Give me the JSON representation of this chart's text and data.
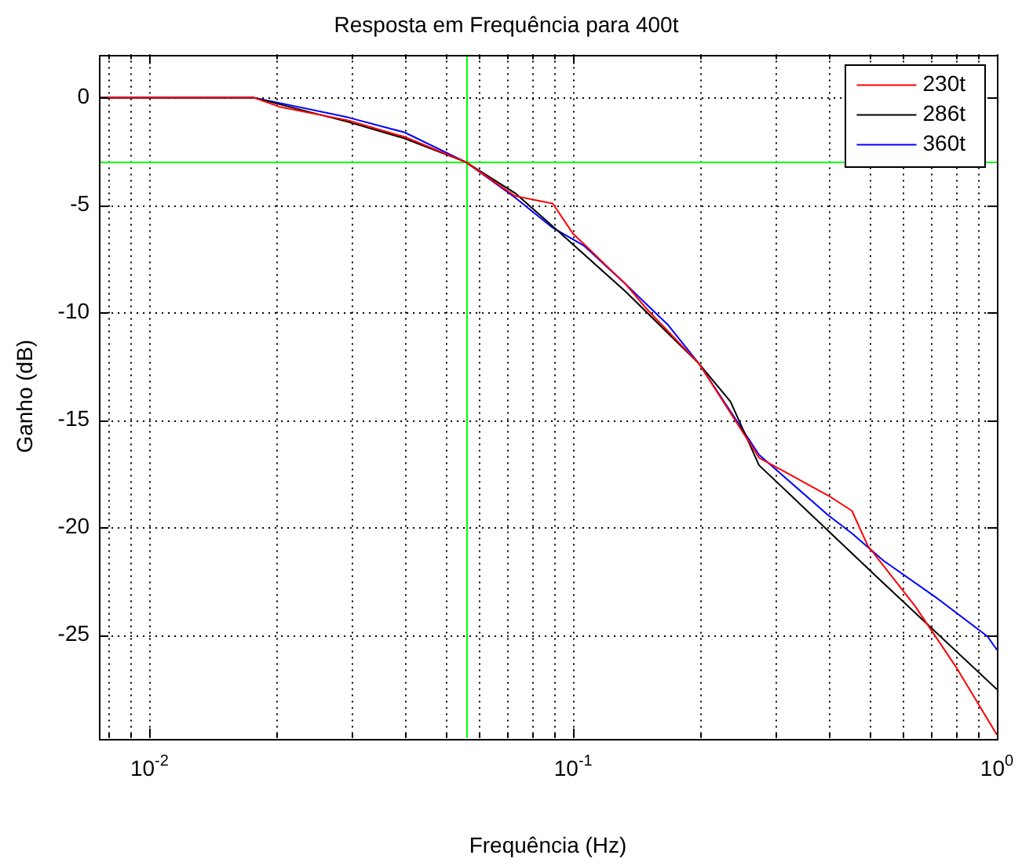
{
  "chart_data": {
    "type": "line",
    "title": "Resposta em Frequência para 400t",
    "xlabel": "Frequência (Hz)",
    "ylabel": "Ganho (dB)",
    "log": "x",
    "grid": true,
    "legend": "top right",
    "marker": "none",
    "line_style": "solid",
    "xlim": [
      0.0076,
      1
    ],
    "ylim": [
      -29.8,
      2
    ],
    "xticks": [
      {
        "value": 0.008,
        "label": null
      },
      {
        "value": 0.009,
        "label": null
      },
      {
        "value": 0.01,
        "label": "10$^{-2}$"
      },
      {
        "value": 0.02,
        "label": null
      },
      {
        "value": 0.03,
        "label": null
      },
      {
        "value": 0.04,
        "label": null
      },
      {
        "value": 0.05,
        "label": null
      },
      {
        "value": 0.06,
        "label": null
      },
      {
        "value": 0.07,
        "label": null
      },
      {
        "value": 0.08,
        "label": null
      },
      {
        "value": 0.09,
        "label": null
      },
      {
        "value": 0.1,
        "label": "10$^{-1}$"
      },
      {
        "value": 0.2,
        "label": null
      },
      {
        "value": 0.3,
        "label": null
      },
      {
        "value": 0.4,
        "label": null
      },
      {
        "value": 0.5,
        "label": null
      },
      {
        "value": 0.6,
        "label": null
      },
      {
        "value": 0.7,
        "label": null
      },
      {
        "value": 0.8,
        "label": null
      },
      {
        "value": 0.9,
        "label": null
      },
      {
        "value": 1,
        "label": "10$^{0}$"
      }
    ],
    "yticks": [
      -25,
      -20,
      -15,
      -10,
      -5,
      0
    ],
    "ref_lines": [
      {
        "axis": "x",
        "value": 0.0558,
        "color": "#00ff00",
        "line_style": "solid"
      },
      {
        "axis": "y",
        "value": -3,
        "color": "#00ff00",
        "line_style": "solid"
      }
    ],
    "series": [
      {
        "name": "230t",
        "color": "#ff0000",
        "x": [
          0.0076,
          0.0176,
          0.0202,
          0.0294,
          0.04,
          0.0558,
          0.0729,
          0.0895,
          0.1,
          0.1327,
          0.1495,
          0.1983,
          0.2746,
          0.4002,
          0.455,
          0.4957,
          0.641,
          0.8,
          1
        ],
        "values": [
          0,
          0,
          -0.42,
          -1.06,
          -1.83,
          -3,
          -4.58,
          -4.93,
          -6.34,
          -8.66,
          -9.86,
          -12.39,
          -16.76,
          -18.52,
          -19.23,
          -20.85,
          -23.66,
          -26.48,
          -29.65
        ]
      },
      {
        "name": "286t",
        "color": "#000000",
        "x": [
          0.0076,
          0.0176,
          0.0294,
          0.04,
          0.0558,
          0.0729,
          0.0895,
          0.1327,
          0.1983,
          0.2352,
          0.2746,
          0.531,
          1
        ],
        "values": [
          0,
          0,
          -1.13,
          -1.9,
          -3,
          -4.44,
          -5.99,
          -9.01,
          -12.39,
          -14.15,
          -17.11,
          -22.46,
          -27.54
        ]
      },
      {
        "name": "360t",
        "color": "#0000ff",
        "x": [
          0.0076,
          0.0176,
          0.0294,
          0.04,
          0.0558,
          0.0729,
          0.0895,
          0.1062,
          0.1327,
          0.1671,
          0.1983,
          0.2746,
          0.4002,
          0.455,
          0.54,
          0.716,
          0.95,
          1
        ],
        "values": [
          0,
          0,
          -0.92,
          -1.62,
          -3,
          -4.65,
          -6.06,
          -6.9,
          -8.66,
          -10.56,
          -12.39,
          -16.62,
          -19.44,
          -20.28,
          -21.55,
          -23.24,
          -25.07,
          -25.7
        ]
      }
    ]
  }
}
